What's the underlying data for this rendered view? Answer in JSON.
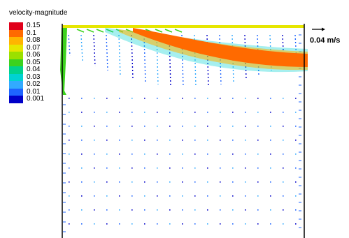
{
  "legend": {
    "title": "velocity-magnitude",
    "items": [
      {
        "label": "0.15",
        "color": "#e0001a"
      },
      {
        "label": "0.1",
        "color": "#ff6a00"
      },
      {
        "label": "0.08",
        "color": "#ffb400"
      },
      {
        "label": "0.07",
        "color": "#e6e600"
      },
      {
        "label": "0.06",
        "color": "#9be000"
      },
      {
        "label": "0.05",
        "color": "#3cd21e"
      },
      {
        "label": "0.04",
        "color": "#00d28c"
      },
      {
        "label": "0.03",
        "color": "#00d2d2"
      },
      {
        "label": "0.02",
        "color": "#32aaff"
      },
      {
        "label": "0.01",
        "color": "#1e64ff"
      },
      {
        "label": "0.001",
        "color": "#0000c8"
      }
    ]
  },
  "scale": {
    "label": "0.04 m/s"
  },
  "colors": {
    "frame": "#000000",
    "lid": "#e6e600"
  }
}
